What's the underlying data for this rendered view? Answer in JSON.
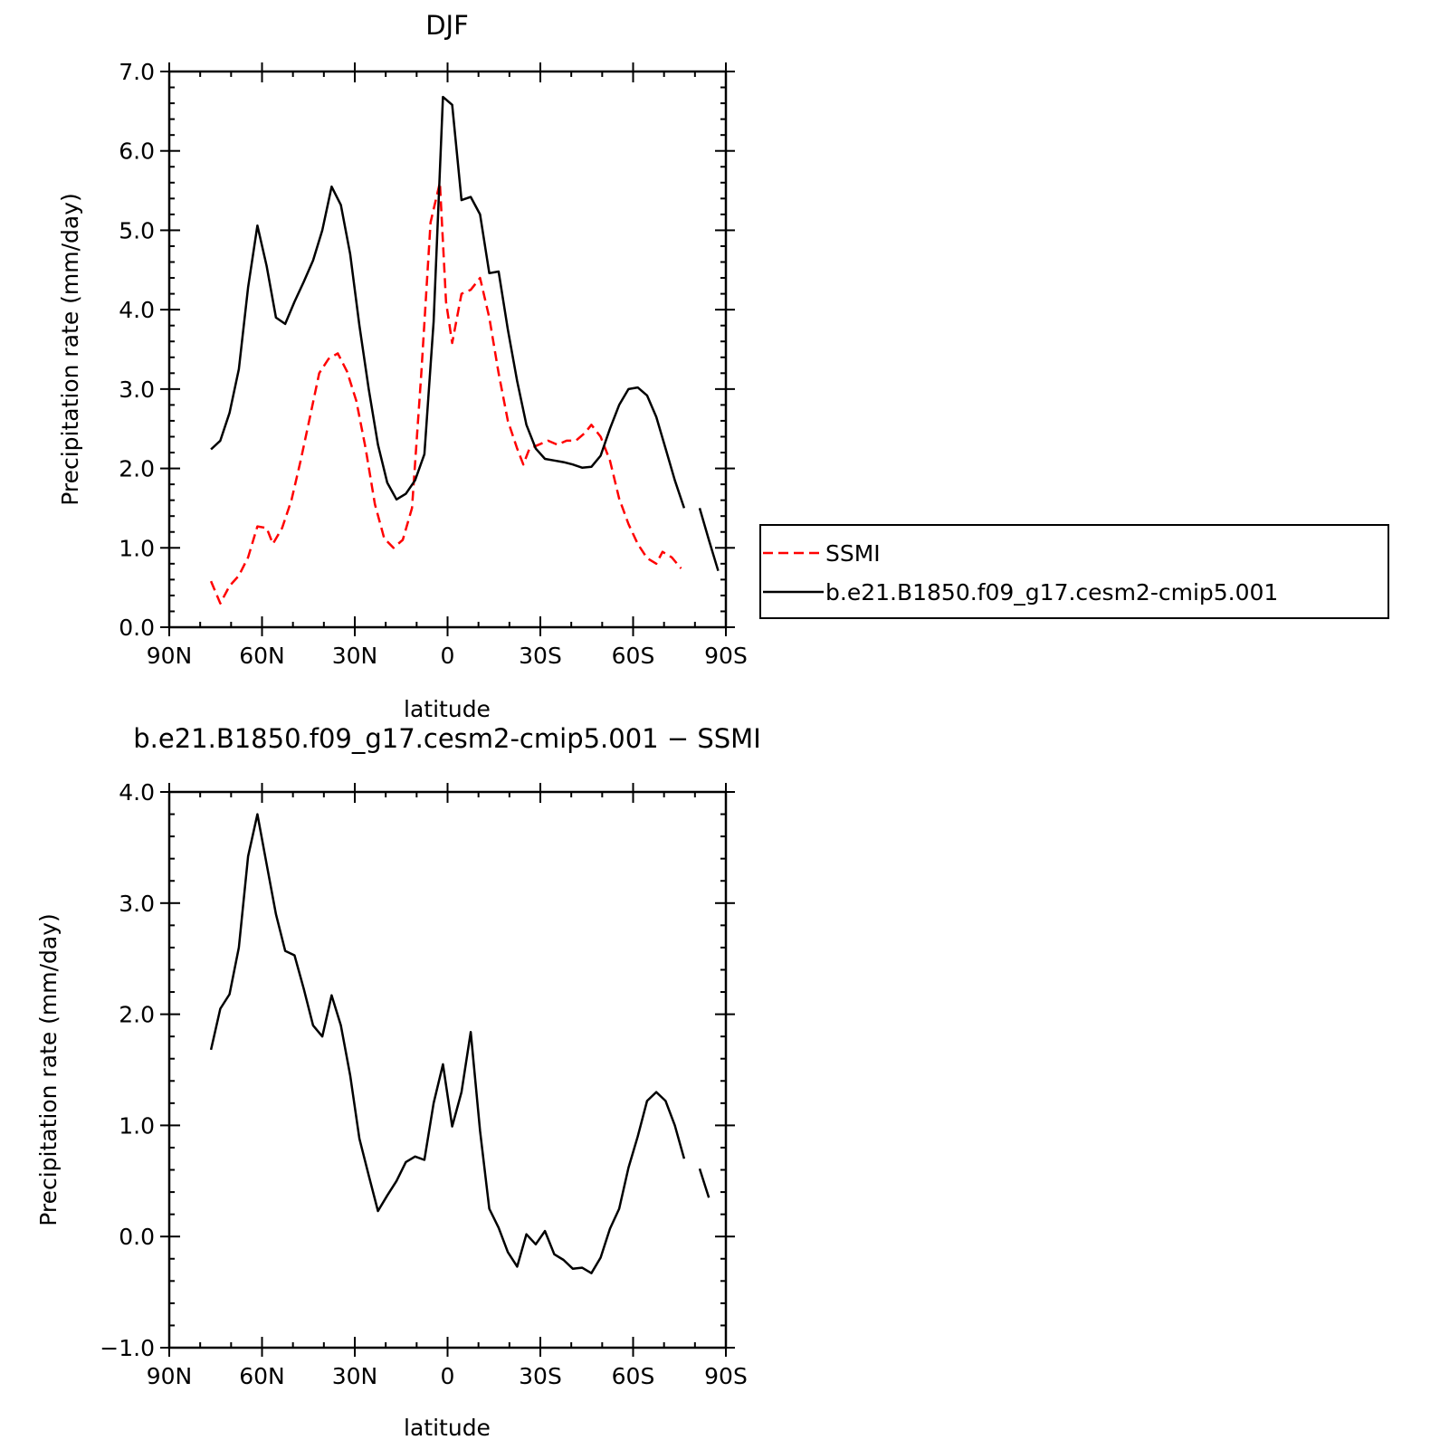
{
  "colors": {
    "model": "#000000",
    "ssmi": "#ff0000",
    "background": "#ffffff"
  },
  "chart_data": [
    {
      "type": "line",
      "title": "DJF",
      "xlabel": "latitude",
      "ylabel": "Precipitation rate (mm/day)",
      "xlim": [
        90,
        -90
      ],
      "ylim": [
        0,
        7
      ],
      "xticks": [
        {
          "value": 90,
          "label": "90N"
        },
        {
          "value": 60,
          "label": "60N"
        },
        {
          "value": 30,
          "label": "30N"
        },
        {
          "value": 0,
          "label": "0"
        },
        {
          "value": -30,
          "label": "30S"
        },
        {
          "value": -60,
          "label": "60S"
        },
        {
          "value": -90,
          "label": "90S"
        }
      ],
      "yticks": [
        {
          "value": 0,
          "label": "0.0"
        },
        {
          "value": 1,
          "label": "1.0"
        },
        {
          "value": 2,
          "label": "2.0"
        },
        {
          "value": 3,
          "label": "3.0"
        },
        {
          "value": 4,
          "label": "4.0"
        },
        {
          "value": 5,
          "label": "5.0"
        },
        {
          "value": 6,
          "label": "6.0"
        },
        {
          "value": 7,
          "label": "7.0"
        }
      ],
      "legend_position": "right",
      "series": [
        {
          "name": "SSMI",
          "style": "dashed",
          "color": "#ff0000",
          "points": [
            [
              76.5,
              0.58
            ],
            [
              73.5,
              0.3
            ],
            [
              70.5,
              0.52
            ],
            [
              67.5,
              0.65
            ],
            [
              64.5,
              0.88
            ],
            [
              61.5,
              1.27
            ],
            [
              58.5,
              1.25
            ],
            [
              56.5,
              1.05
            ],
            [
              53.5,
              1.25
            ],
            [
              50.5,
              1.6
            ],
            [
              47.5,
              2.1
            ],
            [
              44.5,
              2.65
            ],
            [
              41.5,
              3.2
            ],
            [
              38.5,
              3.38
            ],
            [
              35.5,
              3.45
            ],
            [
              32.5,
              3.22
            ],
            [
              29.5,
              2.85
            ],
            [
              26.5,
              2.25
            ],
            [
              23.5,
              1.55
            ],
            [
              20.5,
              1.12
            ],
            [
              17.5,
              1.0
            ],
            [
              14.5,
              1.1
            ],
            [
              11.5,
              1.5
            ],
            [
              8.5,
              3.2
            ],
            [
              5.5,
              5.1
            ],
            [
              2.5,
              5.6
            ],
            [
              0.5,
              4.1
            ],
            [
              -1.5,
              3.58
            ],
            [
              -4.5,
              4.2
            ],
            [
              -7.5,
              4.25
            ],
            [
              -10.5,
              4.4
            ],
            [
              -13.5,
              3.9
            ],
            [
              -16.5,
              3.2
            ],
            [
              -19.5,
              2.6
            ],
            [
              -22.5,
              2.25
            ],
            [
              -24.5,
              2.05
            ],
            [
              -26.5,
              2.25
            ],
            [
              -29.5,
              2.3
            ],
            [
              -32.5,
              2.35
            ],
            [
              -35.5,
              2.3
            ],
            [
              -38.5,
              2.35
            ],
            [
              -41.5,
              2.35
            ],
            [
              -44.5,
              2.45
            ],
            [
              -46.5,
              2.55
            ],
            [
              -49.5,
              2.4
            ],
            [
              -52.5,
              2.1
            ],
            [
              -55.5,
              1.62
            ],
            [
              -58.5,
              1.3
            ],
            [
              -61.5,
              1.05
            ],
            [
              -64.5,
              0.87
            ],
            [
              -67.5,
              0.8
            ],
            [
              -69.5,
              0.95
            ],
            [
              -72.5,
              0.88
            ],
            [
              -75.5,
              0.74
            ]
          ]
        },
        {
          "name": "b.e21.B1850.f09_g17.cesm2-cmip5.001",
          "style": "solid",
          "color": "#000000",
          "segments": [
            [
              [
                76.5,
                2.24
              ],
              [
                73.5,
                2.35
              ],
              [
                70.5,
                2.7
              ],
              [
                67.5,
                3.25
              ],
              [
                64.5,
                4.28
              ],
              [
                61.5,
                5.06
              ],
              [
                58.5,
                4.55
              ],
              [
                55.5,
                3.9
              ],
              [
                52.5,
                3.82
              ],
              [
                49.5,
                4.1
              ],
              [
                46.5,
                4.35
              ],
              [
                43.5,
                4.62
              ],
              [
                40.5,
                5.0
              ],
              [
                37.5,
                5.55
              ],
              [
                34.5,
                5.32
              ],
              [
                31.5,
                4.7
              ],
              [
                28.5,
                3.8
              ],
              [
                25.5,
                3.0
              ],
              [
                22.5,
                2.3
              ],
              [
                19.5,
                1.82
              ],
              [
                16.5,
                1.61
              ],
              [
                13.5,
                1.68
              ],
              [
                10.5,
                1.85
              ],
              [
                7.5,
                2.18
              ],
              [
                4.5,
                3.85
              ],
              [
                1.5,
                6.68
              ],
              [
                -1.5,
                6.58
              ],
              [
                -4.5,
                5.38
              ],
              [
                -7.5,
                5.42
              ],
              [
                -10.5,
                5.2
              ],
              [
                -13.5,
                4.46
              ],
              [
                -16.5,
                4.48
              ],
              [
                -19.5,
                3.75
              ],
              [
                -22.5,
                3.1
              ],
              [
                -25.5,
                2.55
              ],
              [
                -28.5,
                2.25
              ],
              [
                -31.5,
                2.12
              ],
              [
                -34.5,
                2.1
              ],
              [
                -37.5,
                2.08
              ],
              [
                -40.5,
                2.05
              ],
              [
                -43.5,
                2.01
              ],
              [
                -46.5,
                2.02
              ],
              [
                -49.5,
                2.16
              ],
              [
                -52.5,
                2.5
              ],
              [
                -55.5,
                2.8
              ],
              [
                -58.5,
                3.0
              ],
              [
                -61.5,
                3.02
              ],
              [
                -64.5,
                2.92
              ],
              [
                -67.5,
                2.65
              ],
              [
                -70.5,
                2.25
              ],
              [
                -73.5,
                1.85
              ],
              [
                -76.5,
                1.5
              ]
            ],
            [
              [
                -81.5,
                1.5
              ],
              [
                -84.5,
                1.1
              ],
              [
                -87.5,
                0.71
              ]
            ]
          ]
        }
      ]
    },
    {
      "type": "line",
      "title": "b.e21.B1850.f09_g17.cesm2-cmip5.001 − SSMI",
      "xlabel": "latitude",
      "ylabel": "Precipitation rate (mm/day)",
      "xlim": [
        90,
        -90
      ],
      "ylim": [
        -1,
        4
      ],
      "xticks": [
        {
          "value": 90,
          "label": "90N"
        },
        {
          "value": 60,
          "label": "60N"
        },
        {
          "value": 30,
          "label": "30N"
        },
        {
          "value": 0,
          "label": "0"
        },
        {
          "value": -30,
          "label": "30S"
        },
        {
          "value": -60,
          "label": "60S"
        },
        {
          "value": -90,
          "label": "90S"
        }
      ],
      "yticks": [
        {
          "value": -1,
          "label": "−1.0"
        },
        {
          "value": 0,
          "label": "0.0"
        },
        {
          "value": 1,
          "label": "1.0"
        },
        {
          "value": 2,
          "label": "2.0"
        },
        {
          "value": 3,
          "label": "3.0"
        },
        {
          "value": 4,
          "label": "4.0"
        }
      ],
      "series": [
        {
          "style": "solid",
          "color": "#000000",
          "segments": [
            [
              [
                76.5,
                1.68
              ],
              [
                73.5,
                2.05
              ],
              [
                70.5,
                2.18
              ],
              [
                67.5,
                2.6
              ],
              [
                64.5,
                3.42
              ],
              [
                61.5,
                3.8
              ],
              [
                58.5,
                3.35
              ],
              [
                55.5,
                2.9
              ],
              [
                52.5,
                2.57
              ],
              [
                49.5,
                2.53
              ],
              [
                46.5,
                2.23
              ],
              [
                43.5,
                1.9
              ],
              [
                40.5,
                1.8
              ],
              [
                37.5,
                2.17
              ],
              [
                34.5,
                1.9
              ],
              [
                31.5,
                1.45
              ],
              [
                28.5,
                0.88
              ],
              [
                25.5,
                0.55
              ],
              [
                22.5,
                0.23
              ],
              [
                19.5,
                0.37
              ],
              [
                16.5,
                0.5
              ],
              [
                13.5,
                0.67
              ],
              [
                10.5,
                0.72
              ],
              [
                7.5,
                0.69
              ],
              [
                4.5,
                1.2
              ],
              [
                1.5,
                1.55
              ],
              [
                -1.5,
                0.99
              ],
              [
                -4.5,
                1.3
              ],
              [
                -7.5,
                1.84
              ],
              [
                -10.5,
                0.95
              ],
              [
                -13.5,
                0.25
              ],
              [
                -16.5,
                0.08
              ],
              [
                -19.5,
                -0.14
              ],
              [
                -22.5,
                -0.27
              ],
              [
                -25.5,
                0.02
              ],
              [
                -28.5,
                -0.07
              ],
              [
                -31.5,
                0.05
              ],
              [
                -34.5,
                -0.16
              ],
              [
                -37.5,
                -0.21
              ],
              [
                -40.5,
                -0.29
              ],
              [
                -43.5,
                -0.28
              ],
              [
                -46.5,
                -0.33
              ],
              [
                -49.5,
                -0.19
              ],
              [
                -52.5,
                0.07
              ],
              [
                -55.5,
                0.25
              ],
              [
                -58.5,
                0.62
              ],
              [
                -61.5,
                0.9
              ],
              [
                -64.5,
                1.22
              ],
              [
                -67.5,
                1.3
              ],
              [
                -70.5,
                1.22
              ],
              [
                -73.5,
                1.0
              ],
              [
                -76.5,
                0.7
              ]
            ],
            [
              [
                -81.5,
                0.61
              ],
              [
                -84.5,
                0.35
              ]
            ]
          ]
        }
      ]
    }
  ]
}
